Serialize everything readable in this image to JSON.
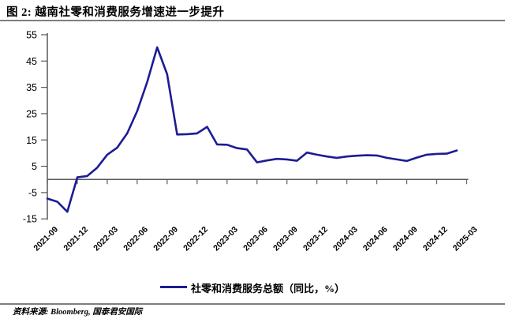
{
  "header": {
    "title": "图 2: 越南社零和消费服务增速进一步提升"
  },
  "legend": {
    "label": "社零和消费服务总额（同比，%）"
  },
  "footer": {
    "source": "资料来源: Bloomberg, 国泰君安国际"
  },
  "colors": {
    "line": "#1C1C96",
    "axis": "#595959",
    "divider": "#7F7F7F",
    "text": "#000000"
  },
  "chart_data": {
    "type": "line",
    "title": "越南社零和消费服务增速进一步提升",
    "xlabel": "",
    "ylabel": "",
    "ylim": [
      -15,
      55
    ],
    "y_ticks": [
      55,
      45,
      35,
      25,
      15,
      5,
      -5,
      -15
    ],
    "zero_line": true,
    "grid": false,
    "legend_position": "bottom",
    "x_tick_labels": [
      "2021-09",
      "2021-12",
      "2022-03",
      "2022-06",
      "2022-09",
      "2022-12",
      "2023-03",
      "2023-06",
      "2023-09",
      "2023-12",
      "2024-03",
      "2024-06",
      "2024-09",
      "2024-12",
      "2025-03"
    ],
    "x": [
      "2021-09",
      "2021-10",
      "2021-11",
      "2021-12",
      "2022-01",
      "2022-02",
      "2022-03",
      "2022-04",
      "2022-05",
      "2022-06",
      "2022-07",
      "2022-08",
      "2022-09",
      "2022-10",
      "2022-11",
      "2022-12",
      "2023-01",
      "2023-02",
      "2023-03",
      "2023-04",
      "2023-05",
      "2023-06",
      "2023-07",
      "2023-08",
      "2023-09",
      "2023-10",
      "2023-11",
      "2023-12",
      "2024-01",
      "2024-02",
      "2024-03",
      "2024-04",
      "2024-05",
      "2024-06",
      "2024-07",
      "2024-08",
      "2024-09",
      "2024-10",
      "2024-11",
      "2024-12",
      "2025-01",
      "2025-02"
    ],
    "series": [
      {
        "name": "社零和消费服务总额（同比，%）",
        "color": "#1C1C96",
        "values": [
          -7.3,
          -8.5,
          -12.3,
          0.8,
          1.3,
          4.5,
          9.4,
          12.1,
          17.5,
          26.0,
          37.0,
          50.2,
          40.0,
          17.1,
          17.2,
          17.5,
          20.0,
          13.3,
          13.2,
          11.9,
          11.4,
          6.5,
          7.2,
          7.8,
          7.6,
          7.1,
          10.2,
          9.4,
          8.7,
          8.2,
          8.7,
          9.0,
          9.2,
          9.1,
          8.2,
          7.6,
          7.0,
          8.3,
          9.4,
          9.7,
          9.8,
          11.0
        ]
      }
    ]
  }
}
